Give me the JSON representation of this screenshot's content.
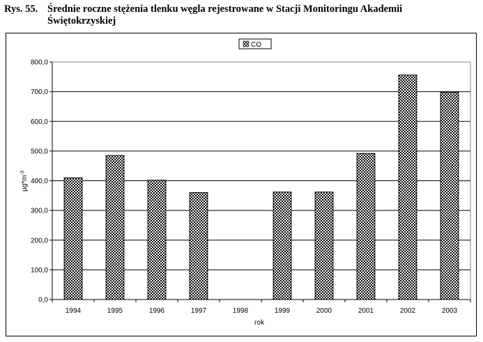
{
  "figure": {
    "prefix": "Rys. 55.",
    "title_line1": "Średnie roczne stężenia tlenku węgla rejestrowane w Stacji Monitoringu Akademii",
    "title_line2": "Świętokrzyskiej"
  },
  "colors": {
    "bar_fill": "#000000",
    "bar_pattern_bg": "#ffffff",
    "gridline": "#000000",
    "plot_border": "#808080"
  },
  "chart_data": {
    "type": "bar",
    "title": "",
    "xlabel": "rok",
    "ylabel": "µg*m-3",
    "ylim": [
      0,
      800
    ],
    "yticks": [
      "0,0",
      "100,0",
      "200,0",
      "300,0",
      "400,0",
      "500,0",
      "600,0",
      "700,0",
      "800,0"
    ],
    "categories": [
      "1994",
      "1995",
      "1996",
      "1997",
      "1998",
      "1999",
      "2000",
      "2001",
      "2002",
      "2003"
    ],
    "series": [
      {
        "name": "CO",
        "values": [
          410,
          485,
          402,
          360,
          null,
          362,
          362,
          492,
          756,
          698
        ]
      }
    ],
    "grid": true,
    "legend": "top-center"
  }
}
